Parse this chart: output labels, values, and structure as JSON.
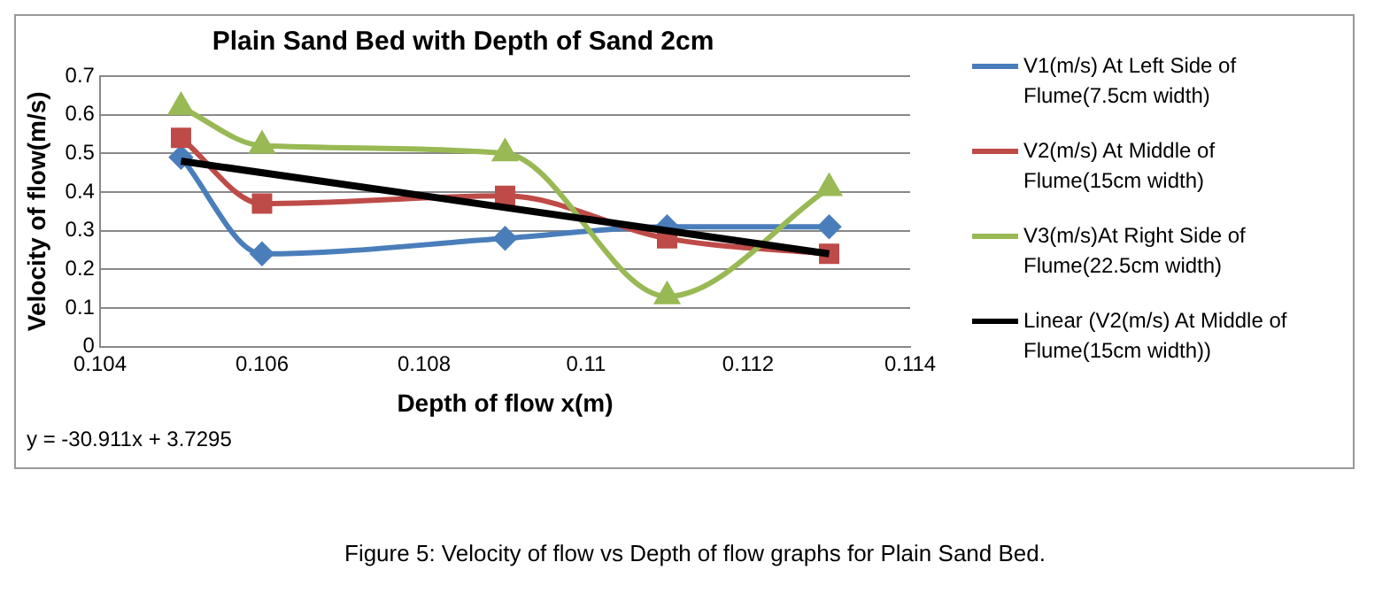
{
  "chart_data": {
    "type": "line",
    "title": "Plain Sand Bed with Depth of Sand 2cm",
    "xlabel": "Depth of flow x(m)",
    "ylabel": "Velocity of flow(m/s)",
    "x": [
      0.105,
      0.106,
      0.109,
      0.111,
      0.113
    ],
    "series": [
      {
        "name": "V1(m/s) At Left Side of Flume(7.5cm width)",
        "color": "#4a7ebb",
        "marker": "diamond",
        "values": [
          0.49,
          0.24,
          0.28,
          0.31,
          0.31
        ]
      },
      {
        "name": "V2(m/s) At Middle of Flume(15cm width)",
        "color": "#be4b48",
        "marker": "square",
        "values": [
          0.54,
          0.37,
          0.39,
          0.28,
          0.24
        ]
      },
      {
        "name": "V3(m/s)At Right Side of Flume(22.5cm width)",
        "color": "#98b954",
        "marker": "triangle",
        "values": [
          0.62,
          0.52,
          0.5,
          0.13,
          0.41
        ]
      },
      {
        "name": "Linear (V2(m/s) At Middle of Flume(15cm width))",
        "color": "#000000",
        "marker": "none",
        "type": "line",
        "x": [
          0.105,
          0.113
        ],
        "values": [
          0.48,
          0.24
        ]
      }
    ],
    "xlim": [
      0.104,
      0.114
    ],
    "xticks": [
      0.104,
      0.106,
      0.108,
      0.11,
      0.112,
      0.114
    ],
    "ylim": [
      0,
      0.7
    ],
    "yticks": [
      0,
      0.1,
      0.2,
      0.3,
      0.4,
      0.5,
      0.6,
      0.7
    ],
    "grid": "y",
    "legend": "right",
    "annotations": [
      "y = -30.911x + 3.7295",
      "Figure 5: Velocity of flow vs Depth of flow graphs for Plain Sand Bed."
    ]
  }
}
